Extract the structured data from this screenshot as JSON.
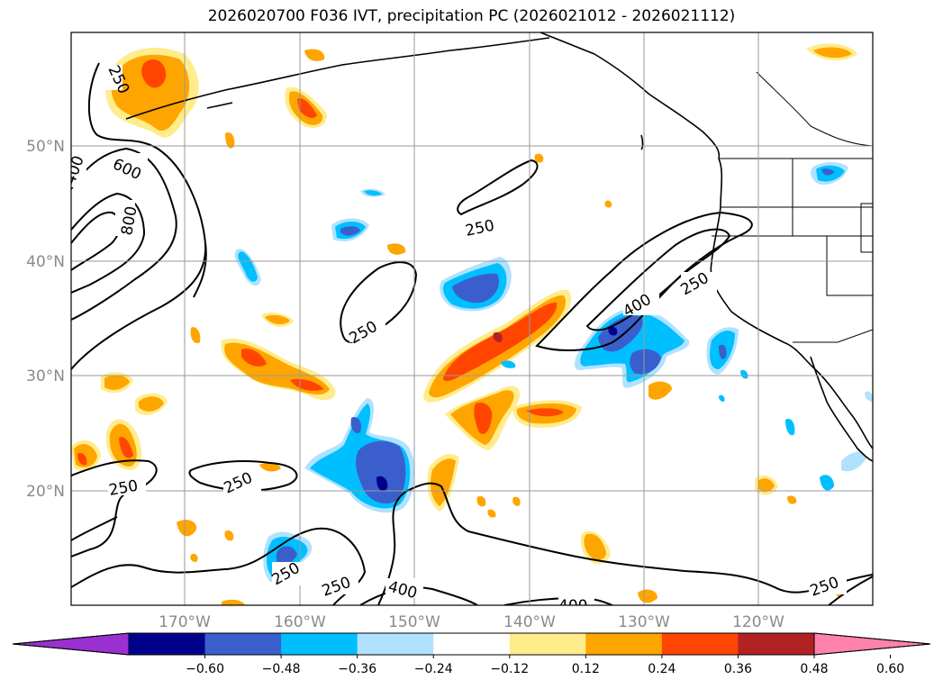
{
  "title": "2026020700 F036 IVT, precipitation PC (2026021012 - 2026021112)",
  "lat_labels": [
    "50°N",
    "40°N",
    "30°N",
    "20°N"
  ],
  "lon_labels": [
    "170°W",
    "160°W",
    "150°W",
    "140°W",
    "130°W",
    "120°W"
  ],
  "contour_labels": [
    "250",
    "400",
    "600",
    "800"
  ],
  "colorbar": {
    "colors": [
      "#9b30d0",
      "#00008b",
      "#3a5fcd",
      "#00bfff",
      "#b0e2ff",
      "#ffffff",
      "#ffec8b",
      "#ffa500",
      "#ff4500",
      "#b22222",
      "#ff82ab"
    ],
    "ticks": [
      "−0.60",
      "−0.48",
      "−0.36",
      "−0.24",
      "−0.12",
      "0.12",
      "0.24",
      "0.36",
      "0.48",
      "0.60"
    ]
  }
}
